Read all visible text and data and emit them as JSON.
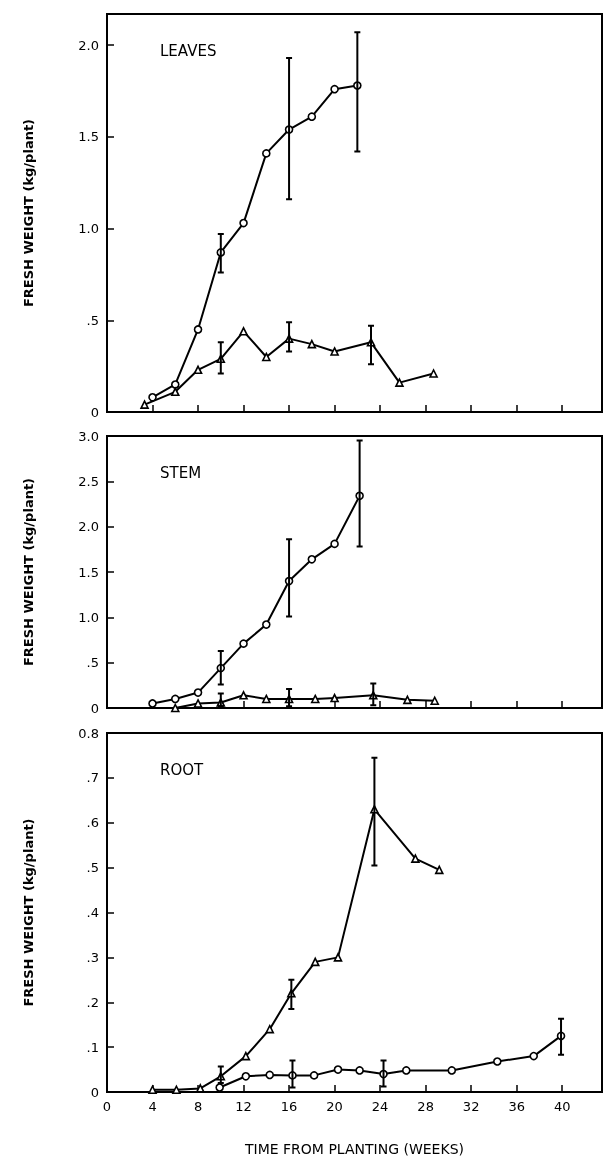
{
  "chart_data": [
    {
      "type": "line",
      "title": "LEAVES",
      "ylabel": "FRESH WEIGHT (kg/plant)",
      "xlim": [
        0,
        43.5
      ],
      "xticks": [
        0,
        4,
        8,
        12,
        16,
        20,
        24,
        28,
        32,
        36,
        40
      ],
      "ylim": [
        0,
        2.17
      ],
      "yticks": [
        {
          "value": 0,
          "label": "0"
        },
        {
          "value": 0.5,
          "label": ".5"
        },
        {
          "value": 1,
          "label": "1.0"
        },
        {
          "value": 1.5,
          "label": "1.5"
        },
        {
          "value": 2,
          "label": "2.0"
        }
      ],
      "tick_labels": "y",
      "grid": false,
      "series": [
        {
          "color": "#000000",
          "marker": "circle",
          "x": [
            4,
            6,
            8,
            10,
            12,
            14,
            16,
            18,
            20,
            22
          ],
          "values": [
            0.08,
            0.15,
            0.45,
            0.87,
            1.03,
            1.41,
            1.54,
            1.61,
            1.76,
            1.78
          ],
          "errors": [
            null,
            null,
            null,
            [
              0.76,
              0.97
            ],
            null,
            null,
            [
              1.16,
              1.93
            ],
            null,
            null,
            [
              1.42,
              2.07
            ]
          ]
        },
        {
          "color": "#000000",
          "marker": "triangle",
          "x": [
            3.3,
            6,
            8,
            10,
            12,
            14,
            16,
            18,
            20,
            23.2,
            25.7,
            28.7
          ],
          "values": [
            0.04,
            0.11,
            0.23,
            0.29,
            0.44,
            0.3,
            0.4,
            0.37,
            0.33,
            0.38,
            0.16,
            0.21
          ],
          "errors": [
            null,
            null,
            null,
            [
              0.21,
              0.38
            ],
            null,
            null,
            [
              0.33,
              0.49
            ],
            null,
            null,
            [
              0.26,
              0.47
            ],
            null,
            null
          ]
        }
      ]
    },
    {
      "type": "line",
      "title": "STEM",
      "ylabel": "FRESH WEIGHT (kg/plant)",
      "xlim": [
        0,
        43.5
      ],
      "xticks": [
        0,
        4,
        8,
        12,
        16,
        20,
        24,
        28,
        32,
        36,
        40
      ],
      "ylim": [
        0,
        3
      ],
      "yticks": [
        {
          "value": 0,
          "label": "0"
        },
        {
          "value": 0.5,
          "label": ".5"
        },
        {
          "value": 1,
          "label": "1.0"
        },
        {
          "value": 1.5,
          "label": "1.5"
        },
        {
          "value": 2,
          "label": "2.0"
        },
        {
          "value": 2.5,
          "label": "2.5"
        },
        {
          "value": 3,
          "label": "3.0"
        }
      ],
      "tick_labels": "y",
      "grid": false,
      "series": [
        {
          "color": "#000000",
          "marker": "circle",
          "x": [
            4,
            6,
            8,
            10,
            12,
            14,
            16,
            18,
            20,
            22.2
          ],
          "values": [
            0.05,
            0.1,
            0.17,
            0.44,
            0.71,
            0.92,
            1.4,
            1.64,
            1.81,
            2.34
          ],
          "errors": [
            null,
            null,
            null,
            [
              0.26,
              0.63
            ],
            null,
            null,
            [
              1.01,
              1.86
            ],
            null,
            null,
            [
              1.78,
              2.95
            ]
          ]
        },
        {
          "color": "#000000",
          "marker": "triangle",
          "x": [
            6,
            8,
            10,
            12,
            14,
            16,
            18.3,
            20,
            23.4,
            26.4,
            28.8
          ],
          "values": [
            0,
            0.05,
            0.06,
            0.14,
            0.1,
            0.1,
            0.1,
            0.11,
            0.14,
            0.09,
            0.08
          ],
          "errors": [
            null,
            null,
            [
              0.02,
              0.16
            ],
            null,
            null,
            [
              0.02,
              0.21
            ],
            null,
            null,
            [
              0.03,
              0.27
            ],
            null,
            null
          ]
        }
      ]
    },
    {
      "type": "line",
      "title": "ROOT",
      "ylabel": "FRESH WEIGHT (kg/plant)",
      "xlabel": "TIME FROM PLANTING (WEEKS)",
      "xlim": [
        0,
        43.5
      ],
      "xticks": [
        0,
        4,
        8,
        12,
        16,
        20,
        24,
        28,
        32,
        36,
        40
      ],
      "ylim": [
        0,
        0.8
      ],
      "yticks": [
        {
          "value": 0,
          "label": "0"
        },
        {
          "value": 0.1,
          "label": ".1"
        },
        {
          "value": 0.2,
          "label": ".2"
        },
        {
          "value": 0.3,
          "label": ".3"
        },
        {
          "value": 0.4,
          "label": ".4"
        },
        {
          "value": 0.5,
          "label": ".5"
        },
        {
          "value": 0.6,
          "label": ".6"
        },
        {
          "value": 0.7,
          "label": ".7"
        },
        {
          "value": 0.8,
          "label": "0.8"
        }
      ],
      "grid": false,
      "series": [
        {
          "color": "#000000",
          "marker": "triangle",
          "x": [
            4,
            6.1,
            8.2,
            10,
            12.2,
            14.3,
            16.2,
            18.3,
            20.3,
            23.5,
            27.1,
            29.2
          ],
          "values": [
            0.005,
            0.005,
            0.008,
            0.035,
            0.08,
            0.14,
            0.22,
            0.29,
            0.3,
            0.63,
            0.52,
            0.495
          ],
          "errors": [
            null,
            null,
            null,
            [
              0.02,
              0.057
            ],
            null,
            null,
            [
              0.185,
              0.25
            ],
            null,
            null,
            [
              0.505,
              0.745
            ],
            null,
            null
          ]
        },
        {
          "color": "#000000",
          "marker": "circle",
          "x": [
            9.9,
            12.2,
            14.3,
            16.3,
            18.2,
            20.3,
            22.2,
            24.3,
            26.3,
            30.3,
            34.3,
            37.5,
            39.9
          ],
          "values": [
            0.01,
            0.035,
            0.038,
            0.037,
            0.037,
            0.05,
            0.048,
            0.04,
            0.048,
            0.048,
            0.068,
            0.08,
            0.125
          ],
          "errors": [
            null,
            null,
            null,
            [
              0.01,
              0.07
            ],
            null,
            null,
            null,
            [
              0.012,
              0.07
            ],
            null,
            null,
            null,
            null,
            [
              0.083,
              0.163
            ]
          ]
        }
      ]
    }
  ]
}
